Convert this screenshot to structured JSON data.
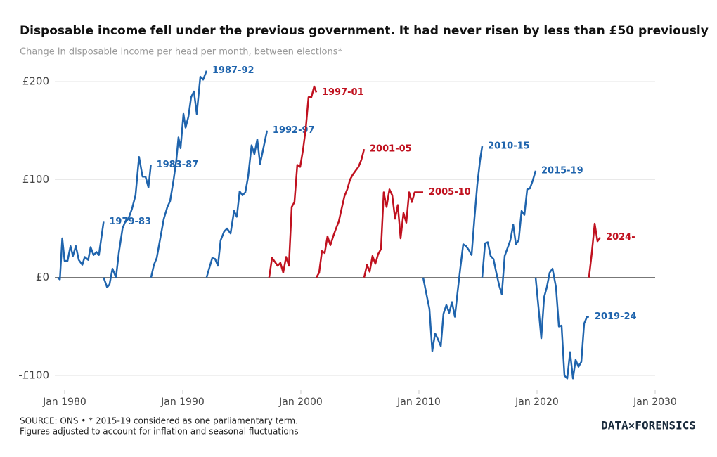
{
  "chart_data": {
    "type": "line",
    "title": "Disposable income fell under the previous government. It had never risen by less than £50 previously",
    "subtitle": "Change in disposable income per head per month, between elections*",
    "notes": [
      "SOURCE: ONS • * 2015-19 considered as one parliamentary term.",
      "Figures adjusted to account for inflation and seasonal fluctuations"
    ],
    "logo": "DATA×FORENSICS",
    "xlim": [
      1979.17,
      2030
    ],
    "xticks": [
      {
        "value": 1980,
        "label": "Jan 1980"
      },
      {
        "value": 1990,
        "label": "Jan 1990"
      },
      {
        "value": 2000,
        "label": "Jan 2000"
      },
      {
        "value": 2010,
        "label": "Jan 2010"
      },
      {
        "value": 2020,
        "label": "Jan 2020"
      },
      {
        "value": 2030,
        "label": "Jan 2030"
      }
    ],
    "ylim": [
      -115,
      211.5
    ],
    "yticks": [
      {
        "value": -100,
        "label": "-£100"
      },
      {
        "value": 0,
        "label": "£0"
      },
      {
        "value": 100,
        "label": "£100"
      },
      {
        "value": 200,
        "label": "£200"
      }
    ],
    "grid": true,
    "zero_line": true,
    "series": [
      {
        "name": "1979-83",
        "color": "#1f64ad",
        "x": [
          1979.4,
          1979.6,
          1979.8,
          1980.0,
          1980.25,
          1980.5,
          1980.7,
          1980.95,
          1981.2,
          1981.5,
          1981.7,
          1982.0,
          1982.2,
          1982.45,
          1982.7,
          1982.9,
          1983.3
        ],
        "values": [
          0,
          -2,
          40,
          17,
          17,
          32,
          22,
          32,
          18,
          13,
          21,
          18,
          31,
          23,
          26,
          23,
          57
        ]
      },
      {
        "name": "1983-87",
        "color": "#1f64ad",
        "x": [
          1983.3,
          1983.6,
          1983.8,
          1984.05,
          1984.35,
          1984.6,
          1984.9,
          1985.1,
          1985.4,
          1985.7,
          1986.0,
          1986.3,
          1986.6,
          1986.85,
          1987.1,
          1987.3
        ],
        "values": [
          0,
          -10,
          -7,
          9,
          0,
          26,
          50,
          56,
          60,
          70,
          84,
          123,
          103,
          103,
          92,
          115
        ]
      },
      {
        "name": "1987-92",
        "color": "#1f64ad",
        "x": [
          1987.32,
          1987.56,
          1987.8,
          1988.1,
          1988.4,
          1988.7,
          1988.93,
          1989.23,
          1989.46,
          1989.64,
          1989.82,
          1990.06,
          1990.24,
          1990.48,
          1990.71,
          1990.95,
          1991.19,
          1991.49,
          1991.73,
          1992.02
        ],
        "values": [
          0,
          13,
          20,
          40,
          60,
          72,
          78,
          100,
          120,
          143,
          132,
          167,
          153,
          164,
          184,
          190,
          167,
          205,
          202,
          211
        ]
      },
      {
        "name": "1992-97",
        "color": "#1f64ad",
        "x": [
          1992.02,
          1992.26,
          1992.5,
          1992.74,
          1992.98,
          1993.21,
          1993.51,
          1993.75,
          1994.05,
          1994.35,
          1994.58,
          1994.82,
          1995.06,
          1995.3,
          1995.54,
          1995.83,
          1996.07,
          1996.31,
          1996.55,
          1996.85,
          1997.14
        ],
        "values": [
          0,
          10,
          20,
          19,
          12,
          38,
          47,
          50,
          45,
          68,
          62,
          88,
          84,
          87,
          103,
          135,
          126,
          141,
          116,
          133,
          150
        ]
      },
      {
        "name": "1997-01",
        "color": "#c0111f",
        "x": [
          1997.32,
          1997.56,
          1997.8,
          1998.04,
          1998.27,
          1998.51,
          1998.75,
          1998.99,
          1999.23,
          1999.46,
          1999.7,
          1999.94,
          2000.18,
          2000.42,
          2000.65,
          2000.89,
          2001.13,
          2001.31
        ],
        "values": [
          0,
          20,
          16,
          12,
          15,
          5,
          21,
          12,
          72,
          77,
          115,
          113,
          130,
          152,
          184,
          184,
          195,
          189
        ]
      },
      {
        "name": "2001-05",
        "color": "#c0111f",
        "x": [
          2001.31,
          2001.55,
          2001.79,
          2002.02,
          2002.26,
          2002.5,
          2002.74,
          2002.98,
          2003.21,
          2003.45,
          2003.69,
          2003.93,
          2004.17,
          2004.4,
          2004.64,
          2004.88,
          2005.12,
          2005.36
        ],
        "values": [
          0,
          5,
          27,
          25,
          42,
          33,
          42,
          50,
          57,
          70,
          83,
          90,
          100,
          105,
          109,
          113,
          120,
          131
        ]
      },
      {
        "name": "2005-10",
        "color": "#c0111f",
        "x": [
          2005.36,
          2005.6,
          2005.83,
          2006.07,
          2006.31,
          2006.55,
          2006.79,
          2007.02,
          2007.26,
          2007.5,
          2007.74,
          2007.98,
          2008.21,
          2008.45,
          2008.69,
          2008.93,
          2009.17,
          2009.4,
          2009.64,
          2010.36
        ],
        "values": [
          0,
          13,
          6,
          22,
          14,
          24,
          29,
          87,
          72,
          90,
          84,
          60,
          74,
          40,
          66,
          56,
          87,
          77,
          87,
          87
        ]
      },
      {
        "name": "2010-15",
        "color": "#1f64ad",
        "x": [
          2010.36,
          2010.6,
          2010.89,
          2011.13,
          2011.37,
          2011.61,
          2011.85,
          2012.08,
          2012.32,
          2012.56,
          2012.8,
          2013.04,
          2013.27,
          2013.51,
          2013.75,
          2013.99,
          2014.23,
          2014.46,
          2014.7,
          2014.94,
          2015.18,
          2015.36
        ],
        "values": [
          0,
          -15,
          -32,
          -75,
          -57,
          -63,
          -70,
          -37,
          -28,
          -36,
          -25,
          -40,
          -15,
          10,
          34,
          32,
          28,
          23,
          60,
          95,
          120,
          134
        ]
      },
      {
        "name": "2015-19",
        "color": "#1f64ad",
        "x": [
          2015.36,
          2015.6,
          2015.83,
          2016.07,
          2016.31,
          2016.55,
          2016.79,
          2017.02,
          2017.26,
          2017.5,
          2017.74,
          2017.98,
          2018.21,
          2018.45,
          2018.69,
          2018.93,
          2019.17,
          2019.4,
          2019.64,
          2019.88
        ],
        "values": [
          0,
          35,
          36,
          22,
          19,
          5,
          -8,
          -17,
          22,
          30,
          38,
          54,
          34,
          38,
          68,
          64,
          90,
          91,
          99,
          109
        ]
      },
      {
        "name": "2019-24",
        "color": "#1f64ad",
        "x": [
          2019.88,
          2020.12,
          2020.36,
          2020.6,
          2020.83,
          2021.07,
          2021.31,
          2021.61,
          2021.85,
          2022.08,
          2022.32,
          2022.56,
          2022.8,
          2023.04,
          2023.27,
          2023.51,
          2023.75,
          2023.99,
          2024.23,
          2024.4
        ],
        "values": [
          0,
          -30,
          -62,
          -20,
          -10,
          5,
          9,
          -10,
          -50,
          -49,
          -100,
          -103,
          -76,
          -103,
          -84,
          -91,
          -86,
          -47,
          -40,
          -40
        ]
      },
      {
        "name": "2024-",
        "color": "#c0111f",
        "x": [
          2024.4,
          2024.64,
          2024.88,
          2025.12,
          2025.36
        ],
        "values": [
          0,
          25,
          55,
          37,
          41
        ]
      }
    ]
  }
}
